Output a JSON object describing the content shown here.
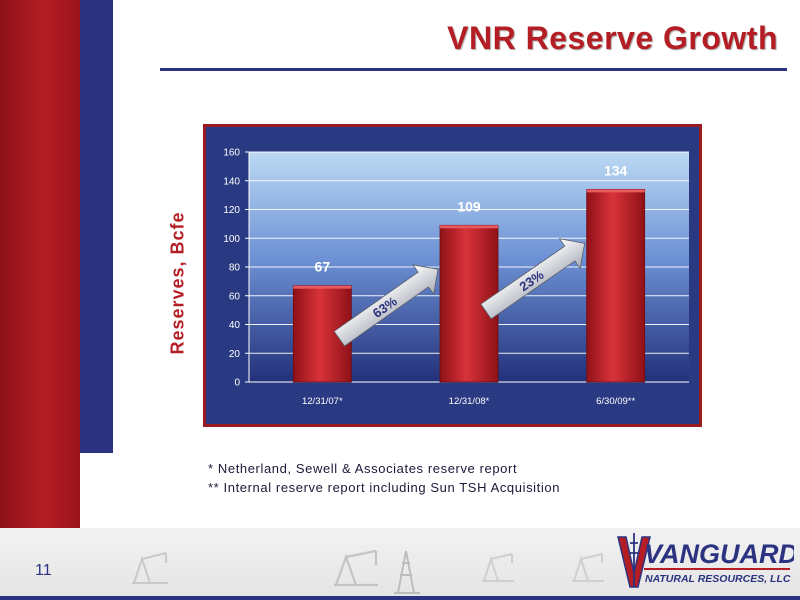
{
  "title": "VNR Reserve Growth",
  "page_number": "11",
  "footnotes": [
    "* Netherland, Sewell & Associates reserve report",
    "** Internal reserve report including Sun TSH Acquisition"
  ],
  "logo": {
    "name": "VANGUARD",
    "subtitle": "NATURAL RESOURCES, LLC"
  },
  "colors": {
    "brand_red": "#b51d24",
    "brand_navy": "#2b3380"
  },
  "chart_data": {
    "type": "bar",
    "categories": [
      "12/31/07*",
      "12/31/08*",
      "6/30/09**"
    ],
    "values": [
      67,
      109,
      134
    ],
    "data_labels": [
      "67",
      "109",
      "134"
    ],
    "ylabel": "Reserves, Bcfe",
    "ylim": [
      0,
      160
    ],
    "yticks": [
      0,
      20,
      40,
      60,
      80,
      100,
      120,
      140,
      160
    ],
    "grid": true,
    "annotations": [
      {
        "text": "63%",
        "from": "12/31/07*",
        "to": "12/31/08*"
      },
      {
        "text": "23%",
        "from": "12/31/08*",
        "to": "6/30/09**"
      }
    ]
  }
}
